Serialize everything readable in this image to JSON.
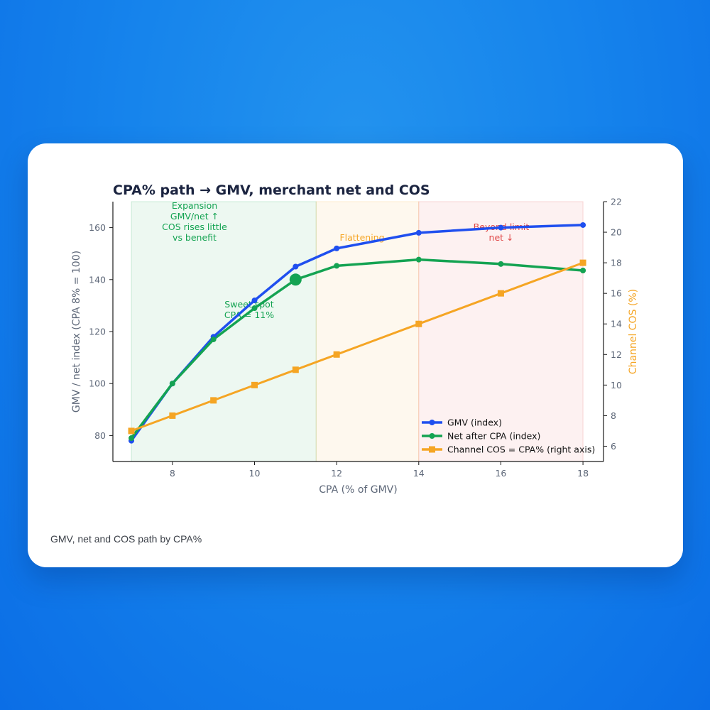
{
  "caption": "GMV, net and COS path by CPA%",
  "chart_data": {
    "type": "line",
    "title": "CPA% path → GMV, merchant net and COS",
    "xlabel": "CPA (% of GMV)",
    "ylabel": "GMV / net index (CPA 8% = 100)",
    "y2label": "Channel COS (%)",
    "xlim": [
      6.55,
      18.5
    ],
    "ylim": [
      70,
      170
    ],
    "y2lim": [
      5,
      22
    ],
    "xticks": [
      8,
      10,
      12,
      14,
      16,
      18
    ],
    "yticks": [
      80,
      100,
      120,
      140,
      160
    ],
    "y2ticks": [
      6,
      8,
      10,
      12,
      14,
      16,
      18,
      20,
      22
    ],
    "x": [
      7,
      8,
      9,
      10,
      11,
      12,
      14,
      16,
      18
    ],
    "series": [
      {
        "name": "GMV (index)",
        "axis": "left",
        "marker": "circle",
        "color": "#1f4fef",
        "values": [
          78,
          100,
          118,
          132,
          145,
          152,
          158,
          160,
          161
        ]
      },
      {
        "name": "Net after CPA (index)",
        "axis": "left",
        "marker": "circle",
        "color": "#14a352",
        "values": [
          79,
          100,
          117,
          129,
          140,
          145.3,
          147.7,
          146,
          143.5
        ]
      },
      {
        "name": "Channel COS = CPA% (right axis)",
        "axis": "right",
        "marker": "square",
        "color": "#f5a524",
        "values": [
          7,
          8,
          9,
          10,
          11,
          12,
          14,
          16,
          18
        ]
      }
    ],
    "regions": [
      {
        "from": 7,
        "to": 11.5,
        "color": "#14a352"
      },
      {
        "from": 11.5,
        "to": 14,
        "color": "#f5a524"
      },
      {
        "from": 14,
        "to": 18,
        "color": "#e04848"
      }
    ],
    "highlight": {
      "x": 11,
      "y": 140,
      "color": "#14a352"
    },
    "annotations": [
      {
        "id": "expansion",
        "lines": [
          "Expansion",
          "GMV/net ↑",
          "COS rises little",
          "vs benefit"
        ],
        "color": "#14a352"
      },
      {
        "id": "sweet-spot",
        "lines": [
          "Sweet spot",
          "CPA = 11%"
        ],
        "color": "#14a352"
      },
      {
        "id": "flattening",
        "lines": [
          "Flattening"
        ],
        "color": "#f5a524"
      },
      {
        "id": "beyond-limit",
        "lines": [
          "Beyond limit",
          "net ↓"
        ],
        "color": "#e04848"
      }
    ],
    "legend": "lower-right",
    "grid": false
  }
}
